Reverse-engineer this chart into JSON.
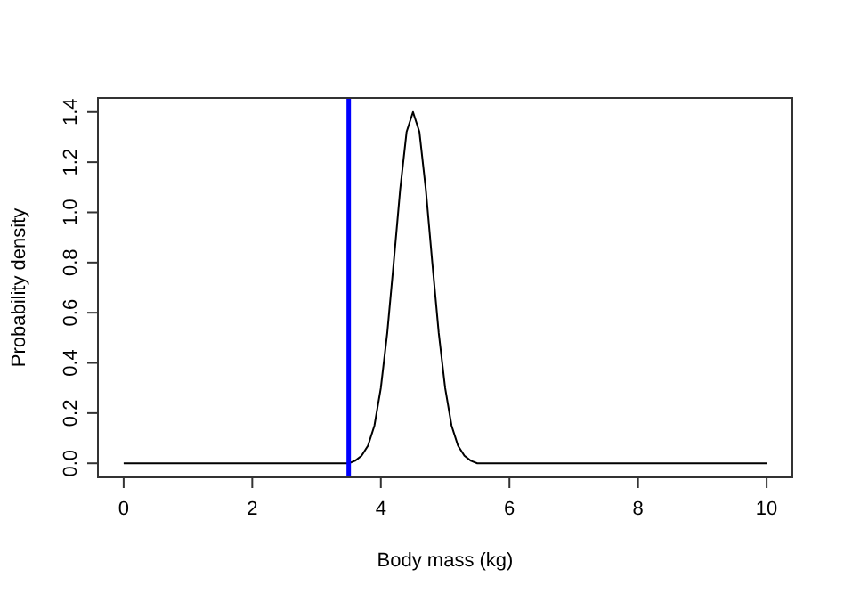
{
  "chart_data": {
    "type": "line",
    "xlabel": "Body mass (kg)",
    "ylabel": "Probability density",
    "series": [
      {
        "color": "#000000",
        "x": [
          0,
          3.5,
          3.6,
          3.7,
          3.8,
          3.9,
          4.0,
          4.1,
          4.2,
          4.3,
          4.4,
          4.5,
          4.6,
          4.7,
          4.8,
          4.9,
          5.0,
          5.1,
          5.2,
          5.3,
          5.4,
          5.5,
          10
        ],
        "values": [
          0,
          0,
          0.01,
          0.03,
          0.07,
          0.15,
          0.3,
          0.52,
          0.8,
          1.09,
          1.32,
          1.4,
          1.32,
          1.09,
          0.8,
          0.52,
          0.3,
          0.15,
          0.07,
          0.03,
          0.01,
          0,
          0
        ]
      }
    ],
    "xlim": [
      -0.4,
      10.4
    ],
    "ylim": [
      -0.056,
      1.456
    ],
    "xticks": [
      0,
      2,
      4,
      6,
      8,
      10
    ],
    "yticks": [
      {
        "value": 0,
        "label": "0.0"
      },
      {
        "value": 0.2,
        "label": "0.2"
      },
      {
        "value": 0.4,
        "label": "0.4"
      },
      {
        "value": 0.6,
        "label": "0.6"
      },
      {
        "value": 0.8,
        "label": "0.8"
      },
      {
        "value": 1.0,
        "label": "1.0"
      },
      {
        "value": 1.2,
        "label": "1.2"
      },
      {
        "value": 1.4,
        "label": "1.4"
      }
    ],
    "ref_lines": [
      {
        "axis": "x",
        "value": 3.5,
        "color": "#0000ff"
      }
    ],
    "grid": false,
    "marker": "none",
    "line_style": "solid"
  }
}
